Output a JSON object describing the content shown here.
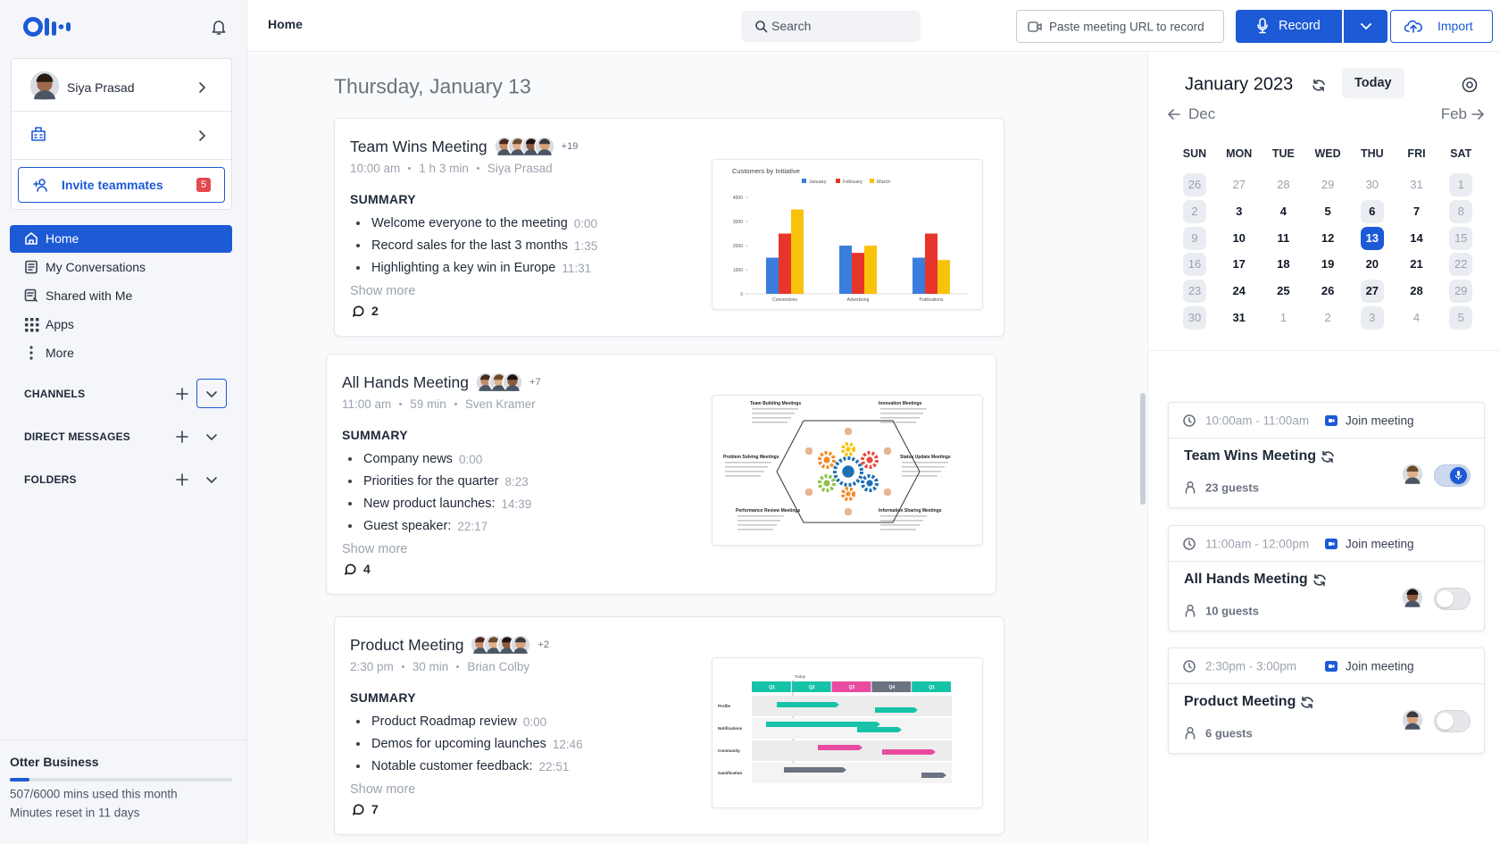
{
  "sidebar": {
    "user": "Siya Prasad",
    "invite": {
      "label": "Invite teammates",
      "badge": "5"
    },
    "nav": [
      "Home",
      "My Conversations",
      "Shared with Me",
      "Apps",
      "More"
    ],
    "sections": [
      "CHANNELS",
      "DIRECT MESSAGES",
      "FOLDERS"
    ],
    "plan": {
      "name": "Otter Business",
      "usage": "507/6000 mins used this month",
      "reset": "Minutes reset in 11 days"
    }
  },
  "topbar": {
    "title": "Home",
    "search": "Search",
    "paste_url": "Paste meeting URL to record",
    "record": "Record",
    "import": "Import"
  },
  "feed": {
    "date": "Thursday, January 13",
    "summary_label": "SUMMARY",
    "show_more": "Show more",
    "meetings": [
      {
        "title": "Team Wins Meeting",
        "more": "+19",
        "time": "10:00 am",
        "duration": "1 h 3 min",
        "host": "Siya Prasad",
        "summary": [
          {
            "text": "Welcome everyone to the meeting",
            "time": "0:00"
          },
          {
            "text": "Record sales for the last 3 months",
            "time": "1:35"
          },
          {
            "text": "Highlighting a key win in Europe",
            "time": "11:31"
          }
        ],
        "comments": 2,
        "preview": {
          "type": "bar",
          "title": "Customers by Initiative",
          "categories": [
            "Conventions",
            "Advertising",
            "Publications"
          ],
          "series": [
            {
              "name": "January",
              "color": "#3b7ddd",
              "values": [
                1500,
                2000,
                1500
              ]
            },
            {
              "name": "February",
              "color": "#e8352b",
              "values": [
                2500,
                1700,
                2500
              ]
            },
            {
              "name": "March",
              "color": "#f9c20a",
              "values": [
                3500,
                2000,
                1400
              ]
            }
          ],
          "ylim": [
            0,
            4000
          ],
          "yticks": [
            0,
            1000,
            2000,
            3000,
            4000
          ]
        }
      },
      {
        "title": "All Hands Meeting",
        "more": "+7",
        "time": "11:00 am",
        "duration": "59 min",
        "host": "Sven Kramer",
        "summary": [
          {
            "text": "Company news",
            "time": "0:00"
          },
          {
            "text": "Priorities for the quarter",
            "time": "8:23"
          },
          {
            "text": "New product launches:",
            "time": "14:39"
          },
          {
            "text": "Guest speaker:",
            "time": "22:17"
          }
        ],
        "comments": 4,
        "preview": {
          "type": "diagram",
          "labels": [
            "Team Building Meetings",
            "Innovation Meetings",
            "Problem Solving Meetings",
            "Status Update Meetings",
            "Performance Review Meetings",
            "Information Sharing Meetings"
          ]
        }
      },
      {
        "title": "Product Meeting",
        "more": "+2",
        "time": "2:30 pm",
        "duration": "30 min",
        "host": "Brian Colby",
        "summary": [
          {
            "text": "Product Roadmap review",
            "time": "0:00"
          },
          {
            "text": "Demos for upcoming launches",
            "time": "12:46"
          },
          {
            "text": "Notable customer feedback:",
            "time": "22:51"
          }
        ],
        "comments": 7,
        "preview": {
          "type": "gantt",
          "marker": "Today",
          "columns": [
            "Q1",
            "Q2",
            "Q3",
            "Q4",
            "Q1"
          ],
          "rows": [
            "Profile",
            "Notifications",
            "Community",
            "Gamification"
          ]
        }
      }
    ]
  },
  "calendar": {
    "month": "January 2023",
    "today": "Today",
    "prev": "Dec",
    "next": "Feb",
    "weekdays": [
      "SUN",
      "MON",
      "TUE",
      "WED",
      "THU",
      "FRI",
      "SAT"
    ],
    "weeks": [
      [
        26,
        27,
        28,
        29,
        30,
        31,
        1
      ],
      [
        2,
        3,
        4,
        5,
        6,
        7,
        8
      ],
      [
        9,
        10,
        11,
        12,
        13,
        14,
        15
      ],
      [
        16,
        17,
        18,
        19,
        20,
        21,
        22
      ],
      [
        23,
        24,
        25,
        26,
        27,
        28,
        29
      ],
      [
        30,
        31,
        1,
        2,
        3,
        4,
        5
      ]
    ]
  },
  "events": {
    "join": "Join meeting",
    "items": [
      {
        "time": "10:00am - 11:00am",
        "title": "Team Wins Meeting",
        "guests": "23 guests",
        "recording": true
      },
      {
        "time": "11:00am - 12:00pm",
        "title": "All Hands Meeting",
        "guests": "10 guests",
        "recording": false
      },
      {
        "time": "2:30pm - 3:00pm",
        "title": "Product Meeting",
        "guests": "6 guests",
        "recording": false
      }
    ]
  }
}
